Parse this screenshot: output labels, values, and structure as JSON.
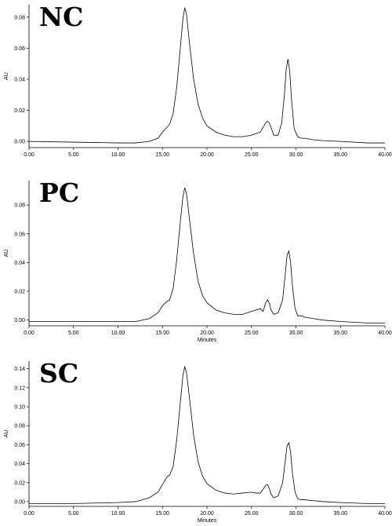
{
  "chart_data": [
    {
      "type": "line",
      "title": "",
      "panel_label": "NC",
      "xlabel": "",
      "ylabel": "AU",
      "xlim": [
        0,
        40
      ],
      "ylim": [
        -0.004,
        0.088
      ],
      "x_ticks": [
        0,
        5,
        10,
        15,
        20,
        25,
        30,
        35,
        40
      ],
      "x_tick_labels": [
        "0.00",
        "5.00",
        "10.00",
        "15.00",
        "20.00",
        "25.00",
        "30.00",
        "35.00",
        "40.00"
      ],
      "y_ticks": [
        0,
        0.02,
        0.04,
        0.06,
        0.08
      ],
      "y_tick_labels": [
        "0.00",
        "0.02",
        "0.04",
        "0.06",
        "0.08"
      ],
      "grid": false,
      "series": [
        {
          "x": [
            0,
            5,
            10,
            12,
            13.5,
            14.5,
            15,
            15.5,
            15.8,
            16.2,
            16.6,
            17,
            17.3,
            17.5,
            17.7,
            18,
            18.5,
            19,
            19.5,
            20,
            21,
            22,
            23,
            24,
            25,
            25.5,
            26,
            26.3,
            26.6,
            26.8,
            27,
            27.2,
            27.5,
            28,
            28.4,
            28.7,
            28.9,
            29.1,
            29.3,
            29.5,
            29.8,
            30.2,
            30.6,
            31,
            32,
            33,
            35,
            38,
            40
          ],
          "y": [
            0.0,
            -0.0005,
            -0.001,
            -0.001,
            0.0,
            0.002,
            0.006,
            0.009,
            0.011,
            0.018,
            0.035,
            0.06,
            0.079,
            0.086,
            0.082,
            0.065,
            0.04,
            0.024,
            0.015,
            0.01,
            0.006,
            0.004,
            0.003,
            0.003,
            0.004,
            0.005,
            0.006,
            0.009,
            0.012,
            0.013,
            0.012,
            0.009,
            0.004,
            0.004,
            0.012,
            0.03,
            0.046,
            0.053,
            0.045,
            0.027,
            0.008,
            0.003,
            0.002,
            0.002,
            0.001,
            0.0005,
            0.0,
            -0.001,
            -0.001
          ]
        }
      ]
    },
    {
      "type": "line",
      "title": "",
      "panel_label": "PC",
      "xlabel": "Minutes",
      "ylabel": "AU",
      "xlim": [
        0,
        40
      ],
      "ylim": [
        -0.004,
        0.097
      ],
      "x_ticks": [
        0,
        5,
        10,
        15,
        20,
        25,
        30,
        35,
        40
      ],
      "x_tick_labels": [
        "0.00",
        "5.00",
        "10.00",
        "15.00",
        "20.00",
        "25.00",
        "30.00",
        "35.00",
        "40.00"
      ],
      "y_ticks": [
        0,
        0.02,
        0.04,
        0.06,
        0.08
      ],
      "y_tick_labels": [
        "0.00",
        "0.02",
        "0.04",
        "0.06",
        "0.08"
      ],
      "grid": false,
      "series": [
        {
          "x": [
            0,
            5,
            10,
            12,
            13.5,
            14.5,
            15,
            15.5,
            15.8,
            16.2,
            16.6,
            17,
            17.3,
            17.5,
            17.7,
            18,
            18.5,
            19,
            19.5,
            20,
            21,
            22,
            23,
            24,
            25,
            25.5,
            26,
            26.3,
            26.6,
            26.8,
            27,
            27.2,
            27.5,
            28,
            28.5,
            28.8,
            29,
            29.2,
            29.4,
            29.6,
            29.9,
            30.2,
            30.6,
            31,
            32,
            33,
            35,
            38,
            40
          ],
          "y": [
            -0.001,
            -0.001,
            -0.001,
            -0.001,
            0.001,
            0.005,
            0.01,
            0.013,
            0.014,
            0.022,
            0.042,
            0.068,
            0.086,
            0.092,
            0.088,
            0.072,
            0.046,
            0.027,
            0.017,
            0.012,
            0.007,
            0.005,
            0.004,
            0.004,
            0.006,
            0.007,
            0.008,
            0.006,
            0.012,
            0.014,
            0.012,
            0.007,
            0.004,
            0.005,
            0.014,
            0.032,
            0.045,
            0.048,
            0.04,
            0.024,
            0.008,
            0.003,
            0.003,
            0.002,
            0.001,
            0.0,
            -0.001,
            -0.002,
            -0.002
          ]
        }
      ]
    },
    {
      "type": "line",
      "title": "",
      "panel_label": "SC",
      "xlabel": "Minutes",
      "ylabel": "AU",
      "xlim": [
        0,
        40
      ],
      "ylim": [
        -0.005,
        0.148
      ],
      "x_ticks": [
        0,
        5,
        10,
        15,
        20,
        25,
        30,
        35,
        40
      ],
      "x_tick_labels": [
        "0.00",
        "5.00",
        "10.00",
        "15.00",
        "20.00",
        "25.00",
        "30.00",
        "35.00",
        "40.00"
      ],
      "y_ticks": [
        0,
        0.02,
        0.04,
        0.06,
        0.08,
        0.1,
        0.12,
        0.14
      ],
      "y_tick_labels": [
        "0.00",
        "0.02",
        "0.04",
        "0.06",
        "0.08",
        "0.10",
        "0.12",
        "0.14"
      ],
      "grid": false,
      "series": [
        {
          "x": [
            0,
            5,
            10,
            12,
            13.5,
            14.5,
            15,
            15.5,
            15.8,
            16.2,
            16.6,
            17,
            17.3,
            17.5,
            17.7,
            18,
            18.5,
            19,
            19.5,
            20,
            21,
            22,
            23,
            24,
            25,
            25.5,
            26,
            26.3,
            26.6,
            26.8,
            27,
            27.2,
            27.5,
            28,
            28.5,
            28.8,
            29,
            29.2,
            29.4,
            29.6,
            29.9,
            30.2,
            30.6,
            31,
            32,
            33,
            35,
            38,
            40
          ],
          "y": [
            -0.002,
            -0.002,
            -0.001,
            0.0,
            0.004,
            0.01,
            0.018,
            0.026,
            0.028,
            0.037,
            0.065,
            0.104,
            0.133,
            0.142,
            0.136,
            0.112,
            0.07,
            0.042,
            0.027,
            0.019,
            0.012,
            0.009,
            0.008,
            0.009,
            0.01,
            0.009,
            0.009,
            0.013,
            0.017,
            0.018,
            0.014,
            0.008,
            0.004,
            0.006,
            0.02,
            0.043,
            0.059,
            0.062,
            0.052,
            0.03,
            0.01,
            0.003,
            0.002,
            0.002,
            0.001,
            0.0,
            -0.001,
            -0.002,
            -0.002
          ]
        }
      ]
    }
  ]
}
